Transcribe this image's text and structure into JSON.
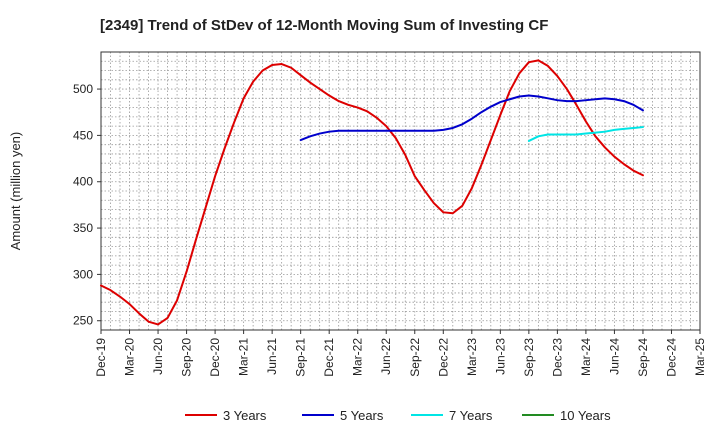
{
  "chart_data": {
    "type": "line",
    "title": "[2349]  Trend of StDev of 12-Month Moving Sum of Investing CF",
    "ylabel": "Amount (million yen)",
    "xlabel": "",
    "ylim": [
      240,
      540
    ],
    "yticks": [
      250,
      300,
      350,
      400,
      450,
      500
    ],
    "x_start": "2019-12",
    "x_end": "2025-03",
    "xtick_labels": [
      "Dec-19",
      "Mar-20",
      "Jun-20",
      "Sep-20",
      "Dec-20",
      "Mar-21",
      "Jun-21",
      "Sep-21",
      "Dec-21",
      "Mar-22",
      "Jun-22",
      "Sep-22",
      "Dec-22",
      "Mar-23",
      "Jun-23",
      "Sep-23",
      "Dec-23",
      "Mar-24",
      "Jun-24",
      "Sep-24",
      "Dec-24",
      "Mar-25"
    ],
    "grid": true,
    "legend_position": "bottom",
    "series": [
      {
        "name": "3 Years",
        "color": "#dd0000",
        "points": [
          [
            "2019-12",
            288
          ],
          [
            "2020-01",
            283
          ],
          [
            "2020-02",
            276
          ],
          [
            "2020-03",
            268
          ],
          [
            "2020-04",
            258
          ],
          [
            "2020-05",
            249
          ],
          [
            "2020-06",
            246
          ],
          [
            "2020-07",
            253
          ],
          [
            "2020-08",
            272
          ],
          [
            "2020-09",
            303
          ],
          [
            "2020-10",
            338
          ],
          [
            "2020-11",
            372
          ],
          [
            "2020-12",
            406
          ],
          [
            "2021-01",
            436
          ],
          [
            "2021-02",
            464
          ],
          [
            "2021-03",
            490
          ],
          [
            "2021-04",
            508
          ],
          [
            "2021-05",
            520
          ],
          [
            "2021-06",
            526
          ],
          [
            "2021-07",
            527
          ],
          [
            "2021-08",
            523
          ],
          [
            "2021-09",
            515
          ],
          [
            "2021-10",
            507
          ],
          [
            "2021-11",
            500
          ],
          [
            "2021-12",
            493
          ],
          [
            "2022-01",
            487
          ],
          [
            "2022-02",
            483
          ],
          [
            "2022-03",
            480
          ],
          [
            "2022-04",
            476
          ],
          [
            "2022-05",
            469
          ],
          [
            "2022-06",
            460
          ],
          [
            "2022-07",
            447
          ],
          [
            "2022-08",
            429
          ],
          [
            "2022-09",
            406
          ],
          [
            "2022-10",
            391
          ],
          [
            "2022-11",
            377
          ],
          [
            "2022-12",
            367
          ],
          [
            "2023-01",
            366
          ],
          [
            "2023-02",
            374
          ],
          [
            "2023-03",
            393
          ],
          [
            "2023-04",
            418
          ],
          [
            "2023-05",
            445
          ],
          [
            "2023-06",
            472
          ],
          [
            "2023-07",
            498
          ],
          [
            "2023-08",
            517
          ],
          [
            "2023-09",
            529
          ],
          [
            "2023-10",
            531
          ],
          [
            "2023-11",
            525
          ],
          [
            "2023-12",
            514
          ],
          [
            "2024-01",
            500
          ],
          [
            "2024-02",
            483
          ],
          [
            "2024-03",
            465
          ],
          [
            "2024-04",
            449
          ],
          [
            "2024-05",
            437
          ],
          [
            "2024-06",
            427
          ],
          [
            "2024-07",
            419
          ],
          [
            "2024-08",
            412
          ],
          [
            "2024-09",
            407
          ]
        ]
      },
      {
        "name": "5 Years",
        "color": "#0000cc",
        "points": [
          [
            "2021-09",
            445
          ],
          [
            "2021-10",
            449
          ],
          [
            "2021-11",
            452
          ],
          [
            "2021-12",
            454
          ],
          [
            "2022-01",
            455
          ],
          [
            "2022-02",
            455
          ],
          [
            "2022-03",
            455
          ],
          [
            "2022-04",
            455
          ],
          [
            "2022-05",
            455
          ],
          [
            "2022-06",
            455
          ],
          [
            "2022-07",
            455
          ],
          [
            "2022-08",
            455
          ],
          [
            "2022-09",
            455
          ],
          [
            "2022-10",
            455
          ],
          [
            "2022-11",
            455
          ],
          [
            "2022-12",
            456
          ],
          [
            "2023-01",
            458
          ],
          [
            "2023-02",
            462
          ],
          [
            "2023-03",
            468
          ],
          [
            "2023-04",
            475
          ],
          [
            "2023-05",
            481
          ],
          [
            "2023-06",
            486
          ],
          [
            "2023-07",
            489
          ],
          [
            "2023-08",
            492
          ],
          [
            "2023-09",
            493
          ],
          [
            "2023-10",
            492
          ],
          [
            "2023-11",
            490
          ],
          [
            "2023-12",
            488
          ],
          [
            "2024-01",
            487
          ],
          [
            "2024-02",
            487
          ],
          [
            "2024-03",
            488
          ],
          [
            "2024-04",
            489
          ],
          [
            "2024-05",
            490
          ],
          [
            "2024-06",
            489
          ],
          [
            "2024-07",
            487
          ],
          [
            "2024-08",
            483
          ],
          [
            "2024-09",
            477
          ]
        ]
      },
      {
        "name": "7 Years",
        "color": "#00e5e5",
        "points": [
          [
            "2023-09",
            444
          ],
          [
            "2023-10",
            449
          ],
          [
            "2023-11",
            451
          ],
          [
            "2023-12",
            451
          ],
          [
            "2024-01",
            451
          ],
          [
            "2024-02",
            451
          ],
          [
            "2024-03",
            452
          ],
          [
            "2024-04",
            453
          ],
          [
            "2024-05",
            454
          ],
          [
            "2024-06",
            456
          ],
          [
            "2024-07",
            457
          ],
          [
            "2024-08",
            458
          ],
          [
            "2024-09",
            459
          ]
        ]
      },
      {
        "name": "10 Years",
        "color": "#228b22",
        "points": []
      }
    ]
  }
}
